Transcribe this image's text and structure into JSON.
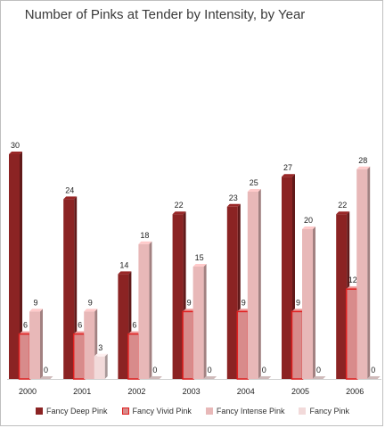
{
  "chart_data": {
    "type": "bar",
    "title": "Number of Pinks at Tender by Intensity, by Year",
    "categories": [
      "2000",
      "2001",
      "2002",
      "2003",
      "2004",
      "2005",
      "2006"
    ],
    "ylim": [
      0,
      30
    ],
    "grid": false,
    "legend_position": "bottom",
    "series": [
      {
        "name": "Fancy Deep Pink",
        "values": [
          30,
          24,
          14,
          22,
          23,
          27,
          22
        ],
        "color": "#8b2323"
      },
      {
        "name": "Fancy Vivid Pink",
        "values": [
          6,
          6,
          6,
          9,
          9,
          9,
          12
        ],
        "color": "#d88b8b",
        "outline": "#e02020"
      },
      {
        "name": "Fancy Intense Pink",
        "values": [
          9,
          9,
          18,
          15,
          25,
          20,
          28
        ],
        "color": "#e8b8b8"
      },
      {
        "name": "Fancy Pink",
        "values": [
          0,
          3,
          0,
          0,
          0,
          0,
          0
        ],
        "color": "#f2dada"
      }
    ],
    "data_labels": [
      [
        "30",
        "24",
        "14",
        "22",
        "23",
        "27",
        "22"
      ],
      [
        "6",
        "6",
        "6",
        "9",
        "9",
        "9",
        "12"
      ],
      [
        "9",
        "9",
        "18",
        "15",
        "25",
        "20",
        "28"
      ],
      [
        "0",
        "3",
        "0",
        "0",
        "0",
        "0",
        "0"
      ]
    ]
  }
}
